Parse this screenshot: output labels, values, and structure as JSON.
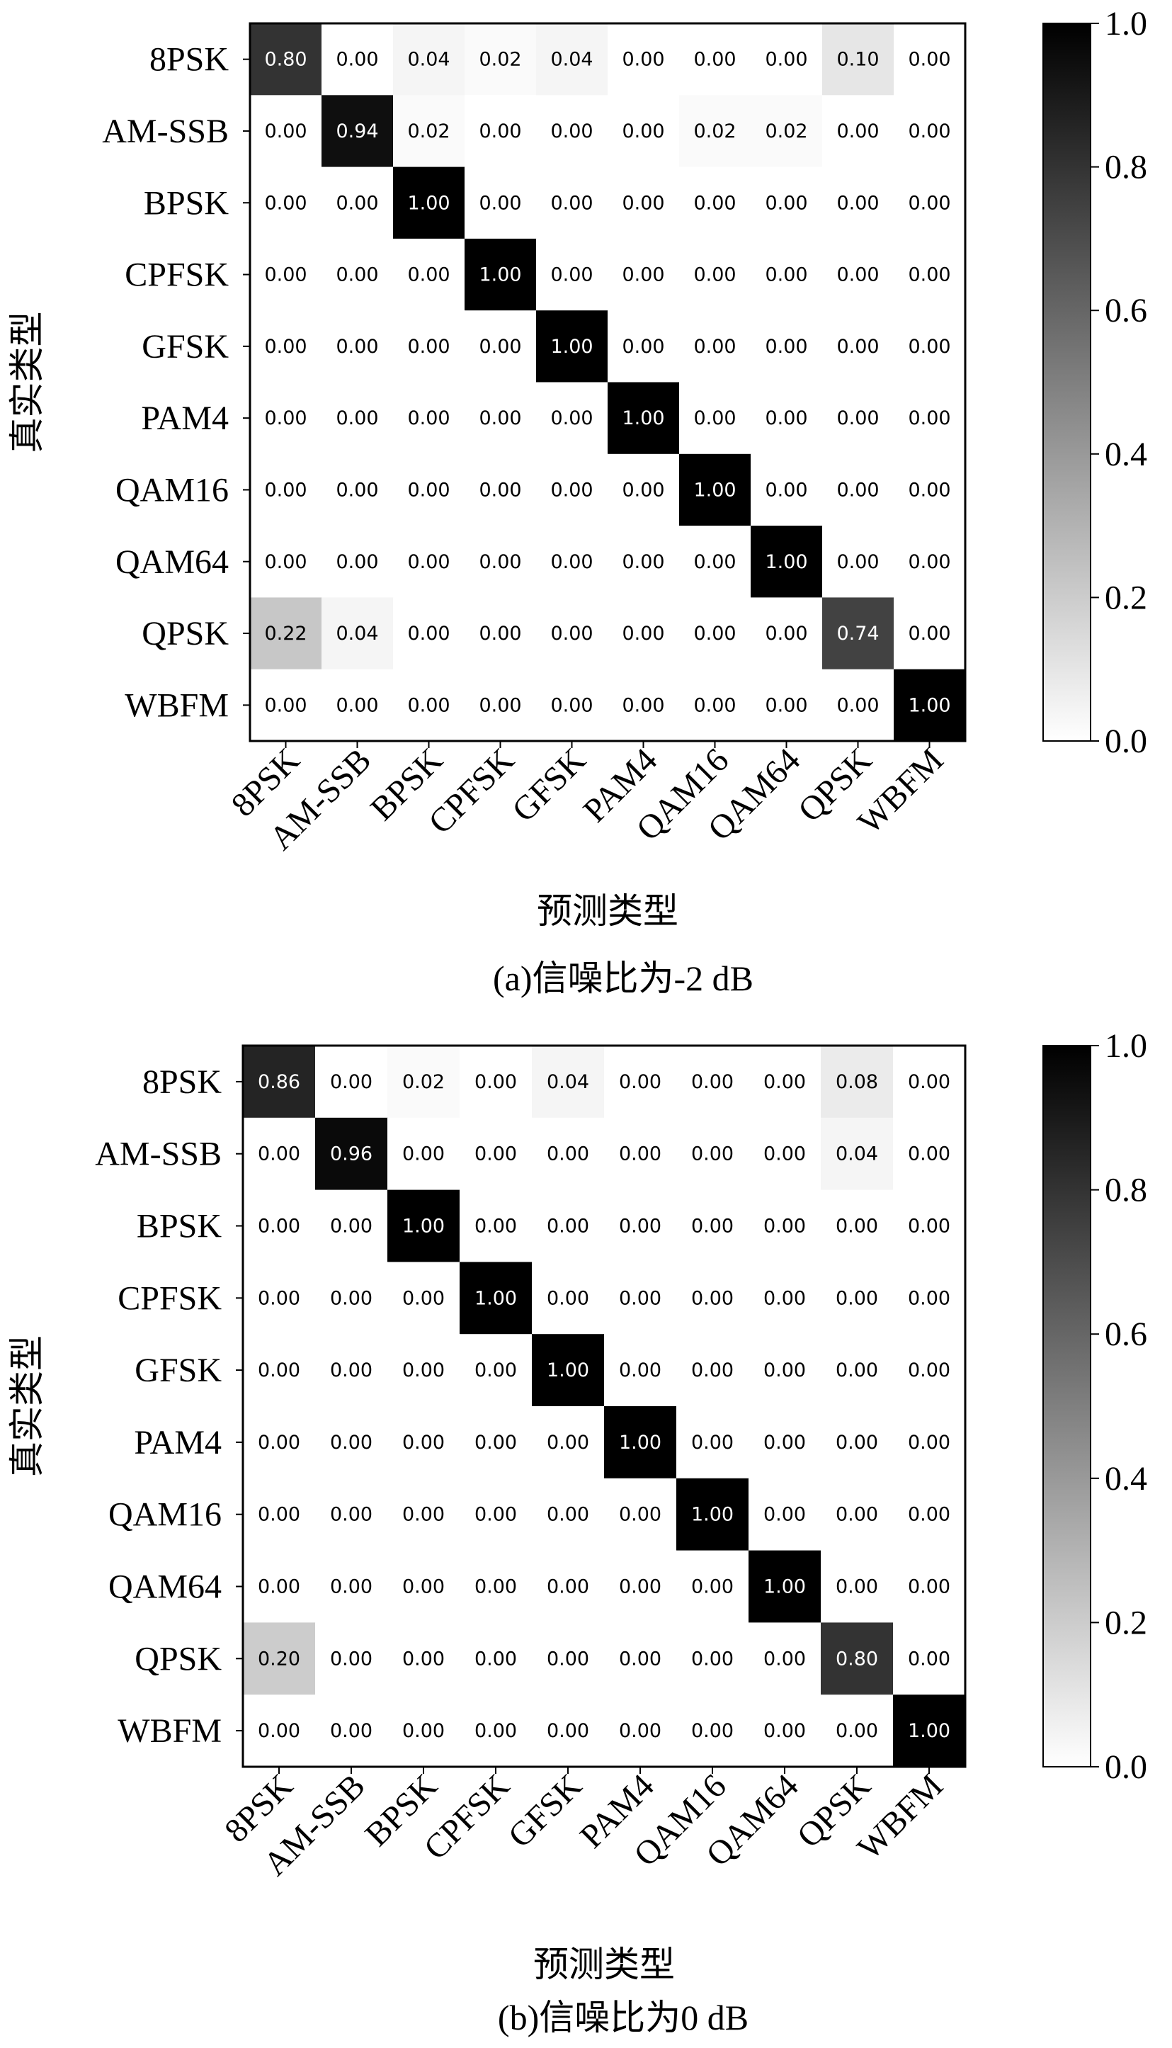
{
  "chart_data": [
    {
      "type": "heatmap",
      "caption": "(a)信噪比为-2 dB",
      "xlabel": "预测类型",
      "ylabel": "真实类型",
      "categories": [
        "8PSK",
        "AM-SSB",
        "BPSK",
        "CPFSK",
        "GFSK",
        "PAM4",
        "QAM16",
        "QAM64",
        "QPSK",
        "WBFM"
      ],
      "matrix": [
        [
          0.8,
          0.0,
          0.04,
          0.02,
          0.04,
          0.0,
          0.0,
          0.0,
          0.1,
          0.0
        ],
        [
          0.0,
          0.94,
          0.02,
          0.0,
          0.0,
          0.0,
          0.02,
          0.02,
          0.0,
          0.0
        ],
        [
          0.0,
          0.0,
          1.0,
          0.0,
          0.0,
          0.0,
          0.0,
          0.0,
          0.0,
          0.0
        ],
        [
          0.0,
          0.0,
          0.0,
          1.0,
          0.0,
          0.0,
          0.0,
          0.0,
          0.0,
          0.0
        ],
        [
          0.0,
          0.0,
          0.0,
          0.0,
          1.0,
          0.0,
          0.0,
          0.0,
          0.0,
          0.0
        ],
        [
          0.0,
          0.0,
          0.0,
          0.0,
          0.0,
          1.0,
          0.0,
          0.0,
          0.0,
          0.0
        ],
        [
          0.0,
          0.0,
          0.0,
          0.0,
          0.0,
          0.0,
          1.0,
          0.0,
          0.0,
          0.0
        ],
        [
          0.0,
          0.0,
          0.0,
          0.0,
          0.0,
          0.0,
          0.0,
          1.0,
          0.0,
          0.0
        ],
        [
          0.22,
          0.04,
          0.0,
          0.0,
          0.0,
          0.0,
          0.0,
          0.0,
          0.74,
          0.0
        ],
        [
          0.0,
          0.0,
          0.0,
          0.0,
          0.0,
          0.0,
          0.0,
          0.0,
          0.0,
          1.0
        ]
      ],
      "colorbar": {
        "range": [
          0.0,
          1.0
        ],
        "ticks": [
          "0.0",
          "0.2",
          "0.4",
          "0.6",
          "0.8",
          "1.0"
        ]
      },
      "colormap": {
        "low": "#ffffff",
        "high": "#000000"
      }
    },
    {
      "type": "heatmap",
      "caption": "(b)信噪比为0 dB",
      "xlabel": "预测类型",
      "ylabel": "真实类型",
      "categories": [
        "8PSK",
        "AM-SSB",
        "BPSK",
        "CPFSK",
        "GFSK",
        "PAM4",
        "QAM16",
        "QAM64",
        "QPSK",
        "WBFM"
      ],
      "matrix": [
        [
          0.86,
          0.0,
          0.02,
          0.0,
          0.04,
          0.0,
          0.0,
          0.0,
          0.08,
          0.0
        ],
        [
          0.0,
          0.96,
          0.0,
          0.0,
          0.0,
          0.0,
          0.0,
          0.0,
          0.04,
          0.0
        ],
        [
          0.0,
          0.0,
          1.0,
          0.0,
          0.0,
          0.0,
          0.0,
          0.0,
          0.0,
          0.0
        ],
        [
          0.0,
          0.0,
          0.0,
          1.0,
          0.0,
          0.0,
          0.0,
          0.0,
          0.0,
          0.0
        ],
        [
          0.0,
          0.0,
          0.0,
          0.0,
          1.0,
          0.0,
          0.0,
          0.0,
          0.0,
          0.0
        ],
        [
          0.0,
          0.0,
          0.0,
          0.0,
          0.0,
          1.0,
          0.0,
          0.0,
          0.0,
          0.0
        ],
        [
          0.0,
          0.0,
          0.0,
          0.0,
          0.0,
          0.0,
          1.0,
          0.0,
          0.0,
          0.0
        ],
        [
          0.0,
          0.0,
          0.0,
          0.0,
          0.0,
          0.0,
          0.0,
          1.0,
          0.0,
          0.0
        ],
        [
          0.2,
          0.0,
          0.0,
          0.0,
          0.0,
          0.0,
          0.0,
          0.0,
          0.8,
          0.0
        ],
        [
          0.0,
          0.0,
          0.0,
          0.0,
          0.0,
          0.0,
          0.0,
          0.0,
          0.0,
          1.0
        ]
      ],
      "colorbar": {
        "range": [
          0.0,
          1.0
        ],
        "ticks": [
          "0.0",
          "0.2",
          "0.4",
          "0.6",
          "0.8",
          "1.0"
        ]
      },
      "colormap": {
        "low": "#ffffff",
        "high": "#000000"
      }
    }
  ]
}
